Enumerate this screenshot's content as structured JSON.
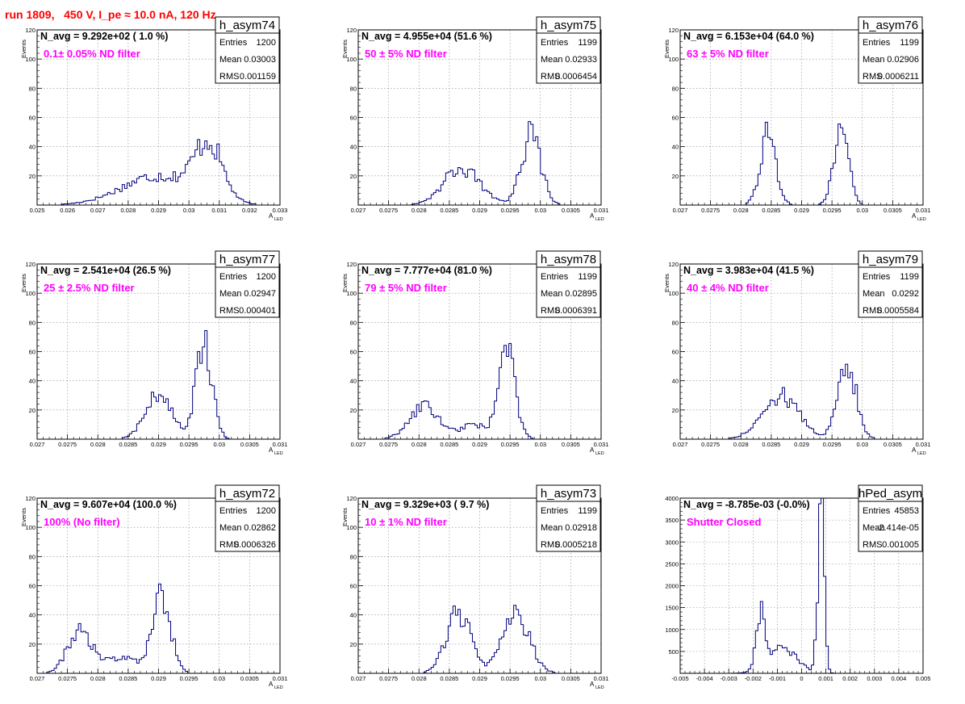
{
  "page": {
    "run_title": "run 1809,   450 V, I_pe ≈ 10.0 nA, 120 Hz"
  },
  "colors": {
    "histogram": "#00007f",
    "annotation": "#ff00ff",
    "title": "#ff0000",
    "grid": "#888888"
  },
  "chart_data": [
    {
      "type": "bar",
      "hist_name": "h_asym74",
      "navg_text": "N_avg = 9.292e+02 ( 1.0 %)",
      "filter_text": "0.1± 0.05% ND filter",
      "stats": {
        "entries_label": "Entries",
        "entries": "1200",
        "mean_label": "Mean",
        "mean": "0.03003",
        "rms_label": "RMS",
        "rms": "0.001159"
      },
      "ylabel": "Events",
      "xlabel": "A",
      "xlabel_sub": "LED",
      "xlim": [
        0.025,
        0.033
      ],
      "ylim": [
        0,
        120
      ],
      "xticks": [
        0.025,
        0.026,
        0.027,
        0.028,
        0.029,
        0.03,
        0.031,
        0.032,
        0.033
      ],
      "xtick_labels": [
        "0.025",
        "0.026",
        "0.027",
        "0.028",
        "0.029",
        "0.03",
        "0.031",
        "0.032",
        "0.033"
      ],
      "yticks": [
        0,
        20,
        40,
        60,
        80,
        100,
        120
      ],
      "ytick_labels": [
        "",
        "20",
        "40",
        "60",
        "80",
        "100",
        "120"
      ],
      "grid": true,
      "peaks": [
        [
          0.029,
          0.0012,
          20
        ],
        [
          0.03065,
          0.00045,
          37
        ]
      ]
    },
    {
      "type": "bar",
      "hist_name": "h_asym75",
      "navg_text": "N_avg = 4.955e+04 (51.6 %)",
      "filter_text": "50 ± 5% ND filter",
      "stats": {
        "entries_label": "Entries",
        "entries": "1199",
        "mean_label": "Mean",
        "mean": "0.02933",
        "rms_label": "RMS",
        "rms": "0.0006454"
      },
      "ylabel": "Events",
      "xlabel": "A",
      "xlabel_sub": "LED",
      "xlim": [
        0.027,
        0.031
      ],
      "ylim": [
        0,
        120
      ],
      "xticks": [
        0.027,
        0.0275,
        0.028,
        0.0285,
        0.029,
        0.0295,
        0.03,
        0.0305,
        0.031
      ],
      "xtick_labels": [
        "0.027",
        "0.0275",
        "0.028",
        "0.0285",
        "0.029",
        "0.0295",
        "0.03",
        "0.0305",
        "0.031"
      ],
      "yticks": [
        0,
        20,
        40,
        60,
        80,
        100,
        120
      ],
      "ytick_labels": [
        "",
        "20",
        "40",
        "60",
        "80",
        "100",
        "120"
      ],
      "grid": true,
      "peaks": [
        [
          0.0287,
          0.0003,
          25
        ],
        [
          0.02985,
          0.00016,
          48
        ]
      ]
    },
    {
      "type": "bar",
      "hist_name": "h_asym76",
      "navg_text": "N_avg = 6.153e+04 (64.0 %)",
      "filter_text": "63 ± 5% ND filter",
      "stats": {
        "entries_label": "Entries",
        "entries": "1199",
        "mean_label": "Mean",
        "mean": "0.02906",
        "rms_label": "RMS",
        "rms": "0.0006211"
      },
      "ylabel": "Events",
      "xlabel": "A",
      "xlabel_sub": "LED",
      "xlim": [
        0.027,
        0.031
      ],
      "ylim": [
        0,
        120
      ],
      "xticks": [
        0.027,
        0.0275,
        0.028,
        0.0285,
        0.029,
        0.0295,
        0.03,
        0.0305,
        0.031
      ],
      "xtick_labels": [
        "0.027",
        "0.0275",
        "0.028",
        "0.0285",
        "0.029",
        "0.0295",
        "0.03",
        "0.0305",
        "0.031"
      ],
      "yticks": [
        0,
        20,
        40,
        60,
        80,
        100,
        120
      ],
      "ytick_labels": [
        "",
        "20",
        "40",
        "60",
        "80",
        "100",
        "120"
      ],
      "grid": true,
      "peaks": [
        [
          0.02845,
          0.00013,
          48
        ],
        [
          0.02965,
          0.00012,
          52
        ]
      ]
    },
    {
      "type": "bar",
      "hist_name": "h_asym77",
      "navg_text": "N_avg = 2.541e+04 (26.5 %)",
      "filter_text": "25 ± 2.5% ND filter",
      "stats": {
        "entries_label": "Entries",
        "entries": "1200",
        "mean_label": "Mean",
        "mean": "0.02947",
        "rms_label": "RMS",
        "rms": "0.000401"
      },
      "ylabel": "Events",
      "xlabel": "A",
      "xlabel_sub": "LED",
      "xlim": [
        0.027,
        0.031
      ],
      "ylim": [
        0,
        120
      ],
      "xticks": [
        0.027,
        0.0275,
        0.028,
        0.0285,
        0.029,
        0.0295,
        0.03,
        0.0305,
        0.031
      ],
      "xtick_labels": [
        "0.027",
        "0.0275",
        "0.028",
        "0.0285",
        "0.029",
        "0.0295",
        "0.03",
        "0.0305",
        "0.031"
      ],
      "yticks": [
        0,
        20,
        40,
        60,
        80,
        100,
        120
      ],
      "ytick_labels": [
        "",
        "20",
        "40",
        "60",
        "80",
        "100",
        "120"
      ],
      "grid": true,
      "peaks": [
        [
          0.029,
          0.00022,
          30
        ],
        [
          0.02975,
          0.00013,
          68
        ]
      ]
    },
    {
      "type": "bar",
      "hist_name": "h_asym78",
      "navg_text": "N_avg = 7.777e+04 (81.0 %)",
      "filter_text": "79 ± 5% ND filter",
      "stats": {
        "entries_label": "Entries",
        "entries": "1199",
        "mean_label": "Mean",
        "mean": "0.02895",
        "rms_label": "RMS",
        "rms": "0.0006391"
      },
      "ylabel": "Events",
      "xlabel": "A",
      "xlabel_sub": "LED",
      "xlim": [
        0.027,
        0.031
      ],
      "ylim": [
        0,
        120
      ],
      "xticks": [
        0.027,
        0.0275,
        0.028,
        0.0285,
        0.029,
        0.0295,
        0.03,
        0.0305,
        0.031
      ],
      "xtick_labels": [
        "0.027",
        "0.0275",
        "0.028",
        "0.0285",
        "0.029",
        "0.0295",
        "0.03",
        "0.0305",
        "0.031"
      ],
      "yticks": [
        0,
        20,
        40,
        60,
        80,
        100,
        120
      ],
      "ytick_labels": [
        "",
        "20",
        "40",
        "60",
        "80",
        "100",
        "120"
      ],
      "grid": true,
      "peaks": [
        [
          0.0281,
          0.00025,
          22
        ],
        [
          0.0289,
          0.0002,
          10
        ],
        [
          0.02945,
          0.00014,
          58
        ]
      ]
    },
    {
      "type": "bar",
      "hist_name": "h_asym79",
      "navg_text": "N_avg = 3.983e+04 (41.5 %)",
      "filter_text": "40 ± 4% ND filter",
      "stats": {
        "entries_label": "Entries",
        "entries": "1199",
        "mean_label": "Mean",
        "mean": "0.0292",
        "rms_label": "RMS",
        "rms": "0.0005584"
      },
      "ylabel": "Events",
      "xlabel": "A",
      "xlabel_sub": "LED",
      "xlim": [
        0.027,
        0.031
      ],
      "ylim": [
        0,
        120
      ],
      "xticks": [
        0.027,
        0.0275,
        0.028,
        0.0285,
        0.029,
        0.0295,
        0.03,
        0.0305,
        0.031
      ],
      "xtick_labels": [
        "0.027",
        "0.0275",
        "0.028",
        "0.0285",
        "0.029",
        "0.0295",
        "0.03",
        "0.0305",
        "0.031"
      ],
      "yticks": [
        0,
        20,
        40,
        60,
        80,
        100,
        120
      ],
      "ytick_labels": [
        "",
        "20",
        "40",
        "60",
        "80",
        "100",
        "120"
      ],
      "grid": true,
      "peaks": [
        [
          0.02865,
          0.0003,
          30
        ],
        [
          0.02975,
          0.00015,
          52
        ]
      ]
    },
    {
      "type": "bar",
      "hist_name": "h_asym72",
      "navg_text": "N_avg = 9.607e+04 (100.0 %)",
      "filter_text": "100% (No filter)",
      "stats": {
        "entries_label": "Entries",
        "entries": "1200",
        "mean_label": "Mean",
        "mean": "0.02862",
        "rms_label": "RMS",
        "rms": "0.0006326"
      },
      "ylabel": "Events",
      "xlabel": "A",
      "xlabel_sub": "LED",
      "xlim": [
        0.027,
        0.031
      ],
      "ylim": [
        0,
        120
      ],
      "xticks": [
        0.027,
        0.0275,
        0.028,
        0.0285,
        0.029,
        0.0295,
        0.03,
        0.0305,
        0.031
      ],
      "xtick_labels": [
        "0.027",
        "0.0275",
        "0.028",
        "0.0285",
        "0.029",
        "0.0295",
        "0.03",
        "0.0305",
        "0.031"
      ],
      "yticks": [
        0,
        20,
        40,
        60,
        80,
        100,
        120
      ],
      "ytick_labels": [
        "",
        "20",
        "40",
        "60",
        "80",
        "100",
        "120"
      ],
      "grid": true,
      "peaks": [
        [
          0.0277,
          0.0002,
          28
        ],
        [
          0.0284,
          0.0003,
          10
        ],
        [
          0.02905,
          0.00015,
          52
        ]
      ]
    },
    {
      "type": "bar",
      "hist_name": "h_asym73",
      "navg_text": "N_avg = 9.329e+03 ( 9.7 %)",
      "filter_text": "10 ± 1% ND filter",
      "stats": {
        "entries_label": "Entries",
        "entries": "1199",
        "mean_label": "Mean",
        "mean": "0.02918",
        "rms_label": "RMS",
        "rms": "0.0005218"
      },
      "ylabel": "Events",
      "xlabel": "A",
      "xlabel_sub": "LED",
      "xlim": [
        0.027,
        0.031
      ],
      "ylim": [
        0,
        120
      ],
      "xticks": [
        0.027,
        0.0275,
        0.028,
        0.0285,
        0.029,
        0.0295,
        0.03,
        0.0305,
        0.031
      ],
      "xtick_labels": [
        "0.027",
        "0.0275",
        "0.028",
        "0.0285",
        "0.029",
        "0.0295",
        "0.03",
        "0.0305",
        "0.031"
      ],
      "yticks": [
        0,
        20,
        40,
        60,
        80,
        100,
        120
      ],
      "ytick_labels": [
        "",
        "20",
        "40",
        "60",
        "80",
        "100",
        "120"
      ],
      "grid": true,
      "peaks": [
        [
          0.02865,
          0.0002,
          42
        ],
        [
          0.0296,
          0.00022,
          40
        ]
      ]
    },
    {
      "type": "bar",
      "hist_name": "hPed_asym",
      "navg_text": "N_avg = -8.785e-03 (-0.0%)",
      "filter_text": "Shutter Closed",
      "stats": {
        "entries_label": "Entries",
        "entries": "45853",
        "mean_label": "Mean",
        "mean": "-2.414e-05",
        "rms_label": "RMS",
        "rms": "0.001005"
      },
      "ylabel": "",
      "xlabel": "",
      "xlabel_sub": "",
      "xlim": [
        -0.005,
        0.005
      ],
      "ylim": [
        0,
        4000
      ],
      "xticks": [
        -0.005,
        -0.004,
        -0.003,
        -0.002,
        -0.001,
        0,
        0.001,
        0.002,
        0.003,
        0.004,
        0.005
      ],
      "xtick_labels": [
        "-0.005",
        "-0.004",
        "-0.003",
        "-0.002",
        "-0.001",
        "0",
        "0.001",
        "0.002",
        "0.003",
        "0.004",
        "0.005"
      ],
      "yticks": [
        0,
        500,
        1000,
        1500,
        2000,
        2500,
        3000,
        3500,
        4000
      ],
      "ytick_labels": [
        "",
        "500",
        "1000",
        "1500",
        "2000",
        "2500",
        "3000",
        "3500",
        "4000"
      ],
      "grid": true,
      "peaks": [
        [
          -0.0017,
          0.00018,
          1250
        ],
        [
          -0.0008,
          0.0006,
          550
        ],
        [
          0.0008,
          0.00013,
          3800
        ]
      ]
    }
  ]
}
